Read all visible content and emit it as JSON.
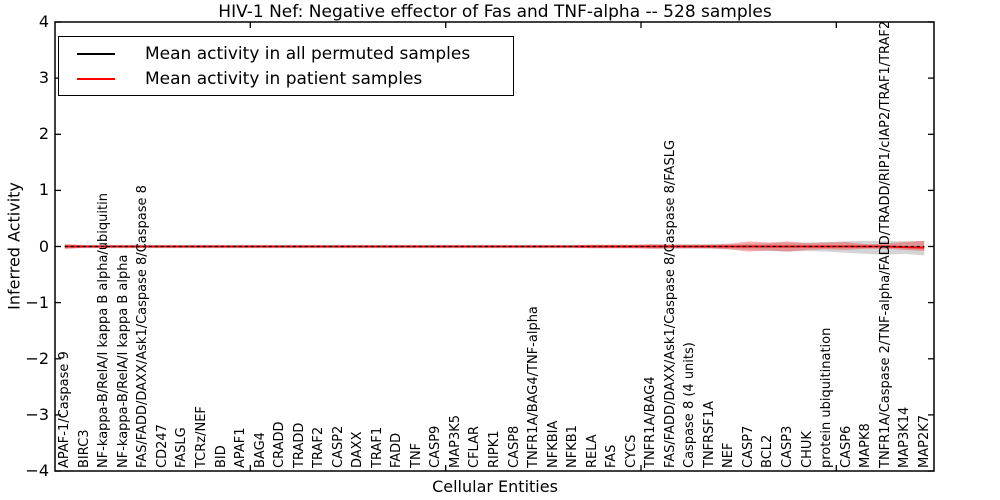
{
  "figure": {
    "title": "HIV-1 Nef: Negative effector of Fas and TNF-alpha -- 528 samples",
    "xlabel": "Cellular Entities",
    "ylabel": "Inferred Activity"
  },
  "legend": {
    "items": [
      {
        "label": "Mean activity in all permuted samples",
        "color": "#000000"
      },
      {
        "label": "Mean activity in patient samples",
        "color": "#ff0000"
      }
    ]
  },
  "colors": {
    "frame": "#000000",
    "permuted_line": "#000000",
    "patient_line": "#ff0000",
    "permuted_band": "#aaaaaa",
    "patient_band": "#ff0000"
  },
  "chart_data": {
    "type": "line",
    "title": "HIV-1 Nef: Negative effector of Fas and TNF-alpha -- 528 samples",
    "xlabel": "Cellular Entities",
    "ylabel": "Inferred Activity",
    "ylim": [
      -4,
      4
    ],
    "grid": false,
    "legend_position": "upper left",
    "ytick_labels": [
      "4",
      "3",
      "2",
      "1",
      "0",
      "−1",
      "−2",
      "−3",
      "−4"
    ],
    "ytick_values": [
      4,
      3,
      2,
      1,
      0,
      -1,
      -2,
      -3,
      -4
    ],
    "xtick_values": [
      10,
      20,
      30,
      40
    ],
    "categories": [
      "APAF-1/Caspase 9",
      "BIRC3",
      "NF-kappa-B/RelA/I kappa B alpha/ubiquitin",
      "NF-kappa-B/RelA/I kappa B alpha",
      "FAS/FADD/DAXX/Ask1/Caspase 8/Caspase 8",
      "CD247",
      "FASLG",
      "TCRz/NEF",
      "BID",
      "APAF1",
      "BAG4",
      "CRADD",
      "TRADD",
      "TRAF2",
      "CASP2",
      "DAXX",
      "TRAF1",
      "FADD",
      "TNF",
      "CASP9",
      "MAP3K5",
      "CFLAR",
      "RIPK1",
      "CASP8",
      "TNFR1A/BAG4/TNF-alpha",
      "NFKBIA",
      "NFKB1",
      "RELA",
      "FAS",
      "CYCS",
      "TNFR1A/BAG4",
      "FAS/FADD/DAXX/Ask1/Caspase 8/Caspase 8/FASLG",
      "Caspase 8 (4 units)",
      "TNFRSF1A",
      "NEF",
      "CASP7",
      "BCL2",
      "CASP3",
      "CHUK",
      "protein ubiquitination",
      "CASP6",
      "MAPK8",
      "TNFR1A/Caspase 2/TNF-alpha/FADD/TRADD/RIP1/cIAP2/TRAF1/TRAF2",
      "MAP3K14",
      "MAP2K7"
    ],
    "series": [
      {
        "name": "Mean activity in all permuted samples",
        "kind": "line",
        "color": "#000000",
        "dashed": true,
        "values": [
          0,
          0,
          0,
          0,
          0,
          0,
          0,
          0,
          0,
          0,
          0,
          0,
          0,
          0,
          0,
          0,
          0,
          0,
          0,
          0,
          0,
          0,
          0,
          0,
          0,
          0,
          0,
          0,
          0,
          0,
          0,
          0,
          0,
          0,
          0,
          0,
          0,
          0,
          0,
          0,
          0,
          0,
          0,
          0,
          0
        ]
      },
      {
        "name": "Mean activity in patient samples",
        "kind": "line",
        "color": "#ff0000",
        "dashed": false,
        "values": [
          0,
          0,
          0,
          0,
          0,
          0,
          0,
          0,
          0,
          0,
          0,
          0,
          0,
          0,
          0,
          0,
          0,
          0,
          0,
          0,
          0,
          0,
          0,
          0,
          0,
          0,
          0,
          0,
          0,
          0,
          0,
          0,
          0,
          0,
          0,
          0,
          0,
          0,
          0,
          0,
          0,
          0,
          0,
          -0.01,
          -0.02
        ]
      },
      {
        "name": "permuted-sample-range-band",
        "kind": "band",
        "color": "#aaaaaa",
        "opacity": 0.5,
        "hi": [
          0.03,
          0.03,
          0.03,
          0.03,
          0.03,
          0.03,
          0.03,
          0.03,
          0.03,
          0.03,
          0.03,
          0.03,
          0.03,
          0.03,
          0.03,
          0.03,
          0.03,
          0.03,
          0.03,
          0.03,
          0.03,
          0.03,
          0.03,
          0.03,
          0.03,
          0.03,
          0.03,
          0.03,
          0.03,
          0.03,
          0.04,
          0.04,
          0.04,
          0.04,
          0.04,
          0.05,
          0.06,
          0.07,
          0.07,
          0.08,
          0.09,
          0.1,
          0.1,
          0.09,
          0.1
        ],
        "lo": [
          -0.03,
          -0.03,
          -0.03,
          -0.03,
          -0.03,
          -0.03,
          -0.03,
          -0.03,
          -0.03,
          -0.03,
          -0.03,
          -0.03,
          -0.03,
          -0.03,
          -0.03,
          -0.03,
          -0.03,
          -0.03,
          -0.03,
          -0.03,
          -0.03,
          -0.03,
          -0.03,
          -0.03,
          -0.03,
          -0.03,
          -0.03,
          -0.03,
          -0.03,
          -0.03,
          -0.04,
          -0.04,
          -0.04,
          -0.04,
          -0.05,
          -0.06,
          -0.08,
          -0.09,
          -0.08,
          -0.09,
          -0.11,
          -0.13,
          -0.15,
          -0.13,
          -0.16
        ]
      },
      {
        "name": "patient-sample-range-band",
        "kind": "band",
        "color": "#ff0000",
        "opacity": 0.3,
        "hi": [
          0.05,
          0.02,
          0.02,
          0.02,
          0.02,
          0.02,
          0.02,
          0.02,
          0.02,
          0.02,
          0.02,
          0.02,
          0.02,
          0.02,
          0.02,
          0.02,
          0.02,
          0.02,
          0.02,
          0.02,
          0.02,
          0.02,
          0.02,
          0.02,
          0.02,
          0.02,
          0.02,
          0.03,
          0.03,
          0.03,
          0.04,
          0.03,
          0.03,
          0.03,
          0.05,
          0.09,
          0.07,
          0.09,
          0.06,
          0.07,
          0.08,
          0.04,
          0.05,
          0.08,
          0.1
        ],
        "lo": [
          -0.05,
          -0.02,
          -0.02,
          -0.02,
          -0.02,
          -0.02,
          -0.02,
          -0.02,
          -0.02,
          -0.02,
          -0.02,
          -0.02,
          -0.02,
          -0.02,
          -0.02,
          -0.02,
          -0.02,
          -0.02,
          -0.02,
          -0.02,
          -0.02,
          -0.02,
          -0.02,
          -0.02,
          -0.02,
          -0.02,
          -0.02,
          -0.03,
          -0.03,
          -0.03,
          -0.04,
          -0.03,
          -0.03,
          -0.03,
          -0.05,
          -0.09,
          -0.07,
          -0.09,
          -0.06,
          -0.05,
          -0.06,
          -0.04,
          -0.04,
          -0.06,
          -0.08
        ]
      }
    ]
  }
}
